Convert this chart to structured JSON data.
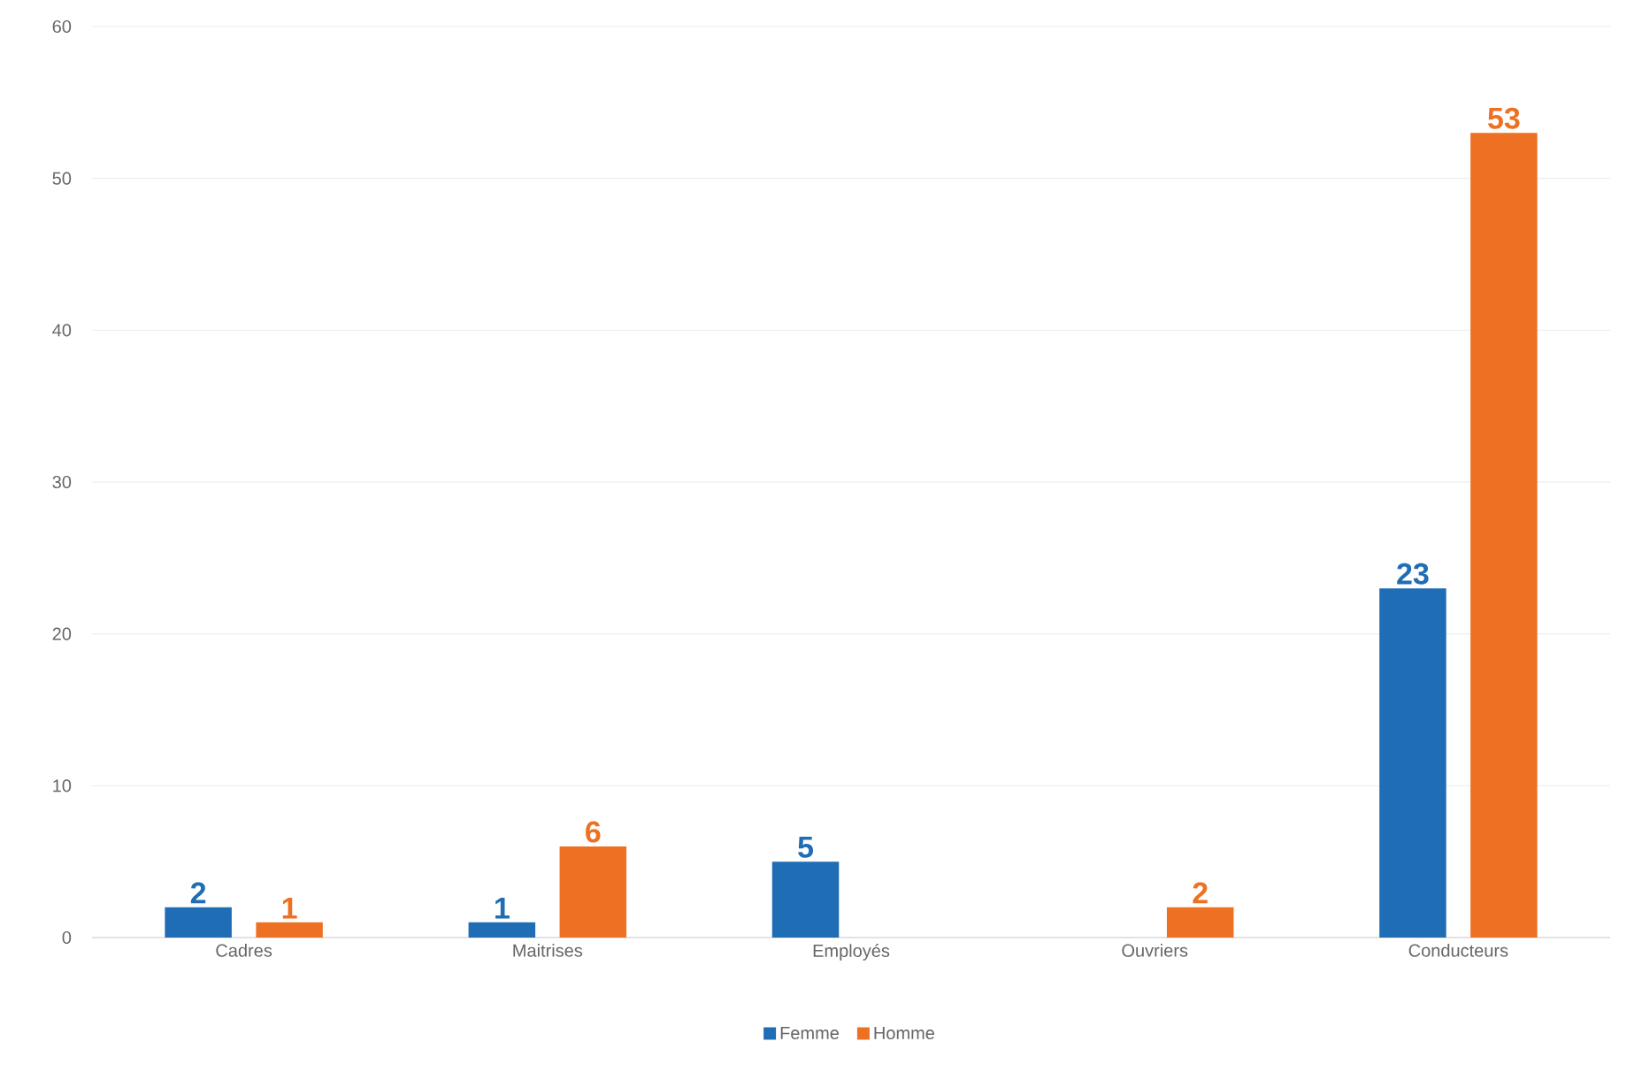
{
  "chart_data": {
    "type": "bar",
    "categories": [
      "Cadres",
      "Maitrises",
      "Employés",
      "Ouvriers",
      "Conducteurs"
    ],
    "series": [
      {
        "name": "Femme",
        "color": "#1f6db5",
        "values": [
          2,
          1,
          5,
          null,
          23
        ]
      },
      {
        "name": "Homme",
        "color": "#ee7022",
        "values": [
          1,
          6,
          null,
          2,
          53
        ]
      }
    ],
    "ylim": [
      0,
      60
    ],
    "yticks": [
      0,
      10,
      20,
      30,
      40,
      50,
      60
    ],
    "grid": "y",
    "legend": "bottom",
    "data_labels": true
  }
}
